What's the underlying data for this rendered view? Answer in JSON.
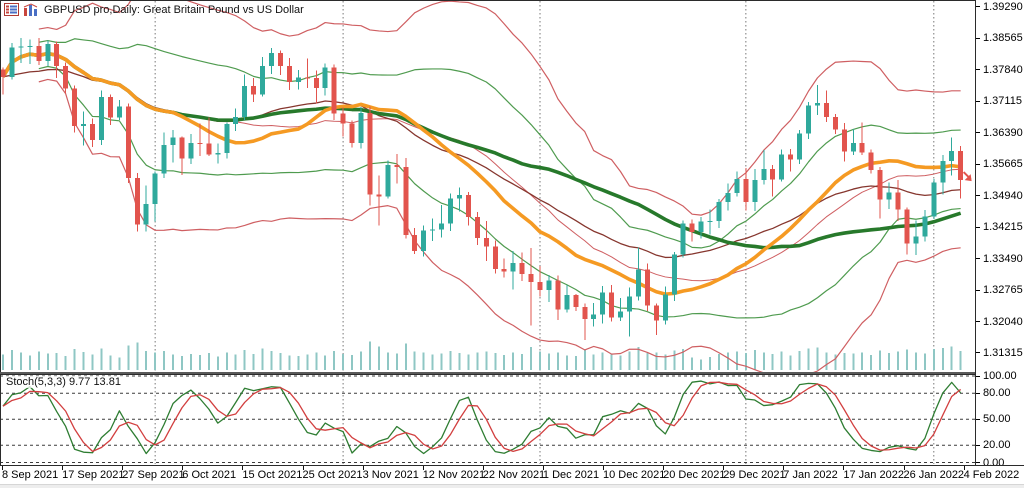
{
  "title_bar": {
    "title": "GBPUSD pro,Daily: Great Britain Pound vs US Dollar",
    "icons": [
      "quotes-grid-icon",
      "chart-columns-icon"
    ]
  },
  "colors": {
    "bull": "#2fa99c",
    "bear": "#e2544d",
    "volume": "#8fc7c4",
    "band_red": "#cf5f62",
    "band_green": "#4f9b4f",
    "ma_orange": "#f59a23",
    "ma_green": "#27792b",
    "ma_maroon": "#86362e",
    "stoch_main": "#2e7d32",
    "stoch_signal": "#d23f3f",
    "grid": "#777777",
    "level": "#3c3c3c",
    "frame": "#2b2b2b",
    "text": "#000000",
    "panel_bg": "#ffffff",
    "window_edge": "#ededed",
    "last_price_arrow": "#e2544d"
  },
  "chart_data": {
    "type": "candlestick",
    "title": "GBPUSD pro,Daily: Great Britain Pound vs US Dollar",
    "symbol": "GBPUSD pro",
    "period": "Daily",
    "x_labels": [
      "8 Sep 2021",
      "17 Sep 2021",
      "27 Sep 2021",
      "6 Oct 2021",
      "15 Oct 2021",
      "25 Oct 2021",
      "3 Nov 2021",
      "12 Nov 2021",
      "22 Nov 2021",
      "1 Dec 2021",
      "10 Dec 2021",
      "20 Dec 2021",
      "29 Dec 2021",
      "7 Jan 2022",
      "17 Jan 2022",
      "26 Jan 2022",
      "4 Feb 2022"
    ],
    "y_axis": {
      "top": 1.3945,
      "bottom": 1.309,
      "tick_labels": [
        "1.39290",
        "1.38565",
        "1.37840",
        "1.37115",
        "1.36390",
        "1.35665",
        "1.34940",
        "1.34215",
        "1.33490",
        "1.32765",
        "1.32040",
        "1.31315"
      ]
    },
    "month_start_bar_indices": [
      17,
      38,
      60,
      83,
      104
    ],
    "ohlc_format": [
      "open",
      "high",
      "low",
      "close"
    ],
    "candles": [
      [
        1.3785,
        1.379,
        1.3727,
        1.3768
      ],
      [
        1.3768,
        1.3846,
        1.3762,
        1.3836
      ],
      [
        1.3836,
        1.3857,
        1.38,
        1.3838
      ],
      [
        1.3838,
        1.3854,
        1.3797,
        1.3839
      ],
      [
        1.3839,
        1.3857,
        1.3795,
        1.3805
      ],
      [
        1.3805,
        1.3852,
        1.3793,
        1.3844
      ],
      [
        1.3844,
        1.3849,
        1.3765,
        1.3793
      ],
      [
        1.3793,
        1.3801,
        1.373,
        1.3741
      ],
      [
        1.3741,
        1.3748,
        1.364,
        1.3655
      ],
      [
        1.3655,
        1.3688,
        1.361,
        1.3659
      ],
      [
        1.3659,
        1.3672,
        1.3606,
        1.3622
      ],
      [
        1.3622,
        1.3737,
        1.3611,
        1.3722
      ],
      [
        1.3722,
        1.3727,
        1.3657,
        1.3674
      ],
      [
        1.3674,
        1.3714,
        1.3669,
        1.37
      ],
      [
        1.37,
        1.3706,
        1.3523,
        1.3535
      ],
      [
        1.3535,
        1.3546,
        1.3411,
        1.3428
      ],
      [
        1.3428,
        1.3517,
        1.3412,
        1.3475
      ],
      [
        1.3475,
        1.355,
        1.3434,
        1.3545
      ],
      [
        1.3545,
        1.364,
        1.3535,
        1.3611
      ],
      [
        1.3611,
        1.3645,
        1.357,
        1.3628
      ],
      [
        1.3628,
        1.363,
        1.3542,
        1.358
      ],
      [
        1.358,
        1.3636,
        1.3567,
        1.3616
      ],
      [
        1.3616,
        1.366,
        1.3585,
        1.3614
      ],
      [
        1.3614,
        1.3674,
        1.3585,
        1.3589
      ],
      [
        1.3589,
        1.3614,
        1.3568,
        1.3592
      ],
      [
        1.3592,
        1.3663,
        1.358,
        1.3659
      ],
      [
        1.3659,
        1.3695,
        1.3643,
        1.3675
      ],
      [
        1.3675,
        1.3773,
        1.3668,
        1.3747
      ],
      [
        1.3747,
        1.3765,
        1.371,
        1.3727
      ],
      [
        1.3727,
        1.3814,
        1.3723,
        1.3793
      ],
      [
        1.3793,
        1.3834,
        1.3775,
        1.3823
      ],
      [
        1.3823,
        1.3829,
        1.3772,
        1.3793
      ],
      [
        1.3793,
        1.3811,
        1.3738,
        1.3756
      ],
      [
        1.3756,
        1.3784,
        1.3739,
        1.3766
      ],
      [
        1.3766,
        1.381,
        1.3742,
        1.3765
      ],
      [
        1.3765,
        1.3782,
        1.3707,
        1.3742
      ],
      [
        1.3742,
        1.3799,
        1.3725,
        1.379
      ],
      [
        1.379,
        1.3796,
        1.3668,
        1.3683
      ],
      [
        1.3683,
        1.3697,
        1.363,
        1.366
      ],
      [
        1.366,
        1.3667,
        1.3605,
        1.3616
      ],
      [
        1.3616,
        1.3698,
        1.3603,
        1.3685
      ],
      [
        1.3685,
        1.3699,
        1.3471,
        1.3497
      ],
      [
        1.3497,
        1.354,
        1.3425,
        1.3492
      ],
      [
        1.3492,
        1.3575,
        1.3487,
        1.3565
      ],
      [
        1.3565,
        1.359,
        1.3522,
        1.356
      ],
      [
        1.356,
        1.3581,
        1.3395,
        1.3403
      ],
      [
        1.3403,
        1.3419,
        1.336,
        1.3367
      ],
      [
        1.3367,
        1.3425,
        1.3354,
        1.3414
      ],
      [
        1.3414,
        1.3442,
        1.339,
        1.3416
      ],
      [
        1.3416,
        1.3473,
        1.3398,
        1.343
      ],
      [
        1.343,
        1.3499,
        1.3413,
        1.3488
      ],
      [
        1.3488,
        1.3513,
        1.3458,
        1.3496
      ],
      [
        1.3496,
        1.3503,
        1.3425,
        1.3445
      ],
      [
        1.3445,
        1.3457,
        1.338,
        1.3397
      ],
      [
        1.3397,
        1.3436,
        1.3343,
        1.3377
      ],
      [
        1.3377,
        1.3391,
        1.3315,
        1.3325
      ],
      [
        1.3325,
        1.3349,
        1.3305,
        1.3319
      ],
      [
        1.3319,
        1.3367,
        1.3278,
        1.3339
      ],
      [
        1.3339,
        1.3363,
        1.3298,
        1.3314
      ],
      [
        1.3314,
        1.3373,
        1.3195,
        1.3295
      ],
      [
        1.3295,
        1.3332,
        1.3262,
        1.3277
      ],
      [
        1.3277,
        1.3311,
        1.3249,
        1.3299
      ],
      [
        1.3299,
        1.331,
        1.3208,
        1.3232
      ],
      [
        1.3232,
        1.3288,
        1.3225,
        1.3265
      ],
      [
        1.3265,
        1.3267,
        1.3228,
        1.3238
      ],
      [
        1.3238,
        1.3246,
        1.3161,
        1.321
      ],
      [
        1.321,
        1.3247,
        1.3193,
        1.322
      ],
      [
        1.322,
        1.3286,
        1.32,
        1.3271
      ],
      [
        1.3271,
        1.3288,
        1.3204,
        1.3213
      ],
      [
        1.3213,
        1.3258,
        1.3205,
        1.3227
      ],
      [
        1.3227,
        1.3283,
        1.317,
        1.3262
      ],
      [
        1.3262,
        1.3375,
        1.3253,
        1.3324
      ],
      [
        1.3324,
        1.3338,
        1.3228,
        1.3241
      ],
      [
        1.3241,
        1.3245,
        1.3173,
        1.3206
      ],
      [
        1.3206,
        1.3285,
        1.3197,
        1.3266
      ],
      [
        1.3266,
        1.3364,
        1.3251,
        1.3359
      ],
      [
        1.3359,
        1.3437,
        1.3352,
        1.343
      ],
      [
        1.343,
        1.3439,
        1.3388,
        1.341
      ],
      [
        1.341,
        1.3445,
        1.3395,
        1.3435
      ],
      [
        1.3435,
        1.3462,
        1.3405,
        1.3436
      ],
      [
        1.3436,
        1.3486,
        1.3419,
        1.348
      ],
      [
        1.348,
        1.3522,
        1.346,
        1.35
      ],
      [
        1.35,
        1.355,
        1.3492,
        1.3532
      ],
      [
        1.3532,
        1.3558,
        1.346,
        1.3479
      ],
      [
        1.3479,
        1.3555,
        1.3459,
        1.353
      ],
      [
        1.353,
        1.3599,
        1.352,
        1.3556
      ],
      [
        1.3556,
        1.3565,
        1.3492,
        1.3531
      ],
      [
        1.3531,
        1.36,
        1.3527,
        1.3589
      ],
      [
        1.3589,
        1.3602,
        1.355,
        1.3578
      ],
      [
        1.3578,
        1.3645,
        1.3567,
        1.3637
      ],
      [
        1.3637,
        1.371,
        1.3625,
        1.3702
      ],
      [
        1.3702,
        1.3749,
        1.368,
        1.3708
      ],
      [
        1.3708,
        1.3737,
        1.3664,
        1.3675
      ],
      [
        1.3675,
        1.3682,
        1.3636,
        1.3647
      ],
      [
        1.3647,
        1.3662,
        1.3573,
        1.3596
      ],
      [
        1.3596,
        1.3648,
        1.3588,
        1.3615
      ],
      [
        1.3615,
        1.3663,
        1.3588,
        1.3593
      ],
      [
        1.3593,
        1.36,
        1.3545,
        1.3553
      ],
      [
        1.3553,
        1.356,
        1.3441,
        1.3485
      ],
      [
        1.3485,
        1.3525,
        1.3463,
        1.3501
      ],
      [
        1.3501,
        1.353,
        1.3436,
        1.3462
      ],
      [
        1.3462,
        1.3467,
        1.3358,
        1.3384
      ],
      [
        1.3384,
        1.3437,
        1.3357,
        1.34
      ],
      [
        1.34,
        1.3461,
        1.3389,
        1.3446
      ],
      [
        1.3446,
        1.3533,
        1.344,
        1.3525
      ],
      [
        1.3525,
        1.3588,
        1.3497,
        1.3574
      ],
      [
        1.3574,
        1.3628,
        1.3541,
        1.3597
      ],
      [
        1.3597,
        1.3608,
        1.3487,
        1.353
      ]
    ],
    "volumes": [
      52,
      66,
      58,
      49,
      61,
      55,
      57,
      47,
      70,
      60,
      52,
      72,
      48,
      41,
      82,
      92,
      64,
      58,
      63,
      52,
      47,
      53,
      50,
      56,
      45,
      58,
      51,
      67,
      54,
      71,
      64,
      56,
      49,
      46,
      51,
      59,
      48,
      63,
      53,
      50,
      61,
      95,
      78,
      59,
      55,
      88,
      62,
      58,
      51,
      55,
      63,
      57,
      52,
      59,
      62,
      56,
      50,
      58,
      54,
      76,
      61,
      55,
      59,
      49,
      46,
      67,
      51,
      58,
      53,
      49,
      62,
      77,
      57,
      59,
      51,
      65,
      70,
      42,
      35,
      44,
      53,
      58,
      61,
      56,
      67,
      59,
      53,
      62,
      49,
      63,
      72,
      75,
      59,
      51,
      57,
      55,
      58,
      50,
      65,
      56,
      61,
      68,
      59,
      55,
      70,
      74,
      78,
      64
    ],
    "last_close": 1.353,
    "stoch": {
      "label": "Stoch(5,3,3) 9.77 13.81",
      "name": "Stoch",
      "parameters": "5,3,3",
      "k_value": "9.77",
      "d_value": "13.81",
      "tick_labels": [
        "100.00",
        "80.00",
        "50.00",
        "20.00",
        "0.00"
      ],
      "tick_values": [
        100,
        80,
        50,
        20,
        0
      ],
      "levels": [
        0,
        20,
        50,
        80,
        100
      ]
    }
  }
}
